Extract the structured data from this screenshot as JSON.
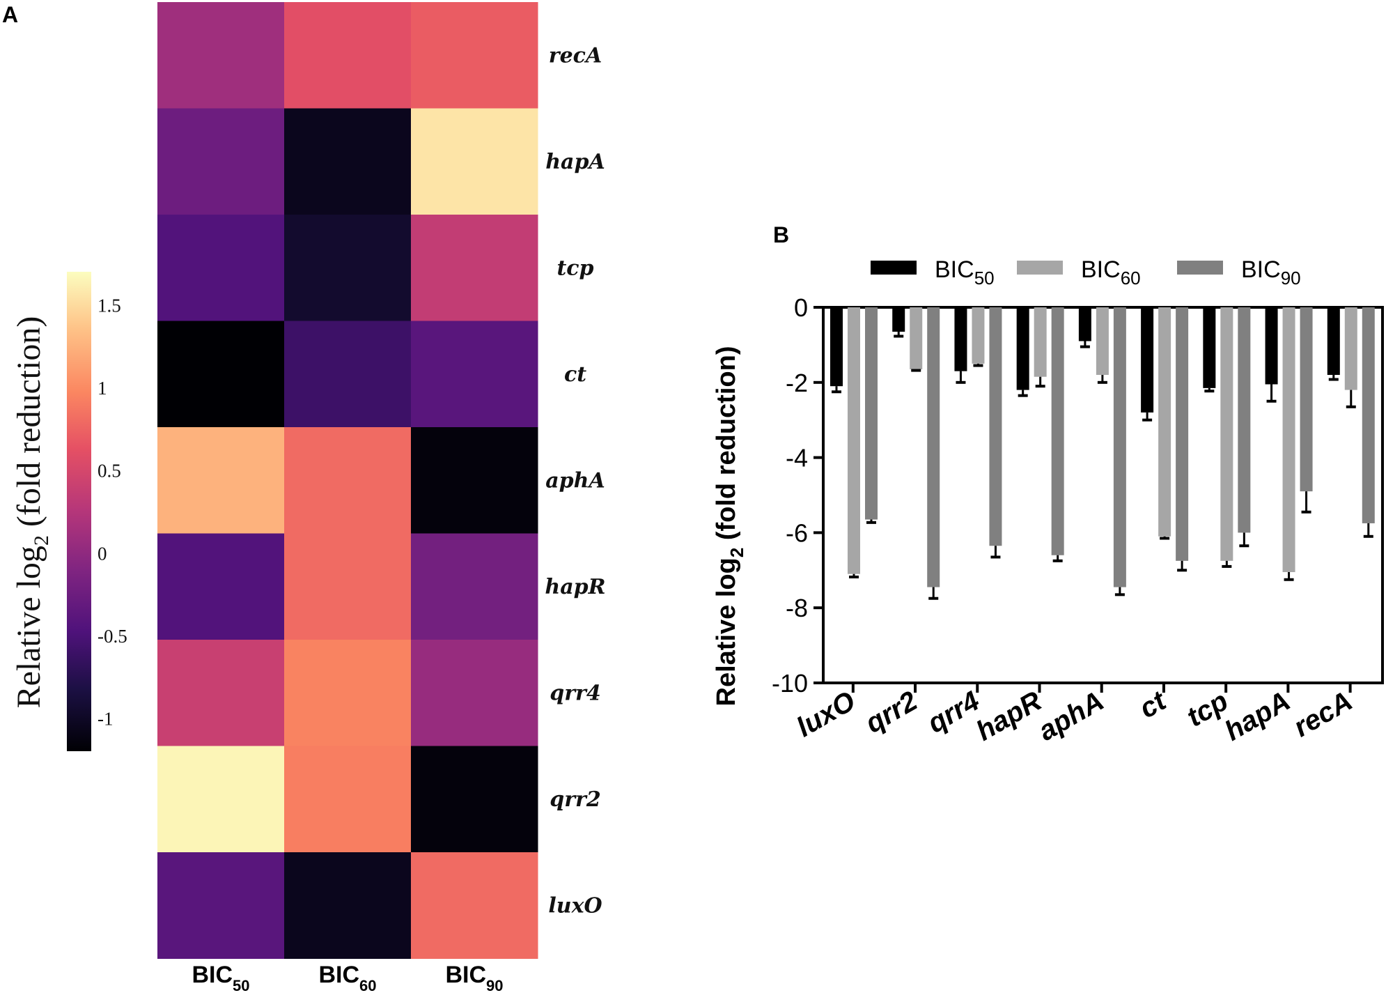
{
  "panel_a": {
    "letter": "A",
    "colorbar": {
      "label_main": "Relative log",
      "label_sub": "2",
      "label_tail": " (fold reduction)",
      "ticks": [
        {
          "value": 1.5,
          "label": "1.5"
        },
        {
          "value": 1,
          "label": "1"
        },
        {
          "value": 0.5,
          "label": "0.5"
        },
        {
          "value": 0,
          "label": "0"
        },
        {
          "value": -0.5,
          "label": "-0.5"
        },
        {
          "value": -1,
          "label": "-1"
        }
      ],
      "range": [
        -1.2,
        1.7
      ]
    }
  },
  "panel_b": {
    "letter": "B"
  },
  "chart_data": [
    {
      "type": "heatmap",
      "title": "",
      "colormap": "magma",
      "vmin": -1.2,
      "vmax": 1.7,
      "rows": [
        "recA",
        "hapA",
        "tcp",
        "ct",
        "aphA",
        "hapR",
        "qrr4",
        "qrr2",
        "luxO"
      ],
      "columns": [
        {
          "base": "BIC",
          "sub": "50"
        },
        {
          "base": "BIC",
          "sub": "60"
        },
        {
          "base": "BIC",
          "sub": "90"
        }
      ],
      "values": [
        [
          0.1,
          0.6,
          0.7
        ],
        [
          -0.25,
          -1.05,
          1.55
        ],
        [
          -0.45,
          -0.95,
          0.35
        ],
        [
          -1.2,
          -0.6,
          -0.4
        ],
        [
          1.25,
          0.8,
          -1.15
        ],
        [
          -0.45,
          0.8,
          -0.2
        ],
        [
          0.4,
          0.95,
          0.05
        ],
        [
          1.65,
          0.92,
          -1.15
        ],
        [
          -0.4,
          -1.05,
          0.8
        ]
      ]
    },
    {
      "type": "bar",
      "title": "",
      "xlabel": "",
      "ylabel_main": "Relative log",
      "ylabel_sub": "2",
      "ylabel_tail": " (fold reduction)",
      "ylim": [
        -10,
        0
      ],
      "yticks": [
        0,
        -2,
        -4,
        -6,
        -8,
        -10
      ],
      "categories": [
        "luxO",
        "qrr2",
        "qrr4",
        "hapR",
        "aphA",
        "ct",
        "tcp",
        "hapA",
        "recA"
      ],
      "series": [
        {
          "base": "BIC",
          "sub": "50",
          "color": "#000000",
          "values": [
            -2.1,
            -0.65,
            -1.7,
            -2.2,
            -0.9,
            -2.8,
            -2.15,
            -2.05,
            -1.8
          ],
          "errors": [
            0.15,
            0.12,
            0.3,
            0.15,
            0.15,
            0.2,
            0.08,
            0.45,
            0.12
          ]
        },
        {
          "base": "BIC",
          "sub": "60",
          "color": "#a6a6a6",
          "values": [
            -7.1,
            -1.65,
            -1.5,
            -1.85,
            -1.8,
            -6.1,
            -6.75,
            -7.05,
            -2.2
          ],
          "errors": [
            0.08,
            0.03,
            0.05,
            0.25,
            0.2,
            0.05,
            0.15,
            0.2,
            0.45
          ]
        },
        {
          "base": "BIC",
          "sub": "90",
          "color": "#808080",
          "values": [
            -5.65,
            -7.45,
            -6.35,
            -6.6,
            -7.45,
            -6.75,
            -6.0,
            -4.9,
            -5.75
          ],
          "errors": [
            0.08,
            0.3,
            0.3,
            0.15,
            0.2,
            0.25,
            0.35,
            0.55,
            0.35
          ]
        }
      ]
    }
  ]
}
